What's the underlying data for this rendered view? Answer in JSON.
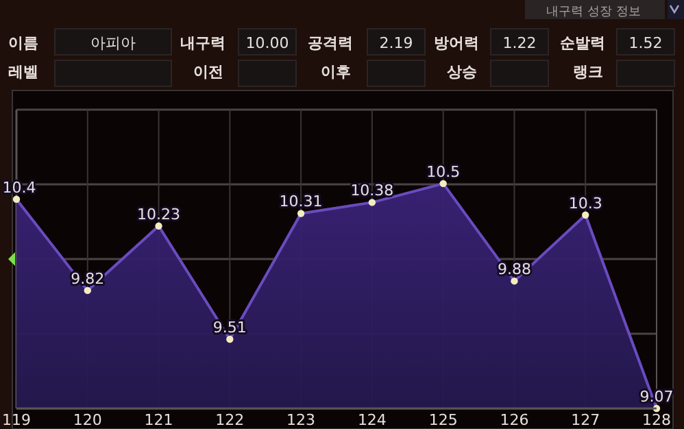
{
  "chart_data": {
    "type": "area",
    "title": "내구력 성장 정보",
    "annotations": [
      "이름",
      "아피아",
      "내구력",
      "10.00",
      "공격력",
      "2.19",
      "방어력",
      "1.22",
      "순발력",
      "1.52",
      "레벨",
      "이전",
      "이후",
      "상승",
      "랭크"
    ],
    "categories": [
      "119",
      "120",
      "121",
      "122",
      "123",
      "124",
      "125",
      "126",
      "127",
      "128"
    ],
    "series": [
      {
        "color": "#6a4bc0",
        "values": [
          10.4,
          9.82,
          10.23,
          9.51,
          10.31,
          10.38,
          10.5,
          9.88,
          10.3,
          9.07
        ]
      }
    ],
    "ylim": [
      9.07,
      10.97
    ],
    "yticks": [
      {
        "value": 9.07,
        "label": null
      },
      {
        "value": 9.545,
        "label": null
      },
      {
        "value": 10.02,
        "label": null
      },
      {
        "value": 10.495,
        "label": null
      },
      {
        "value": 10.97,
        "label": null
      }
    ],
    "grid": true,
    "data_labels": true,
    "marker": "circle"
  }
}
